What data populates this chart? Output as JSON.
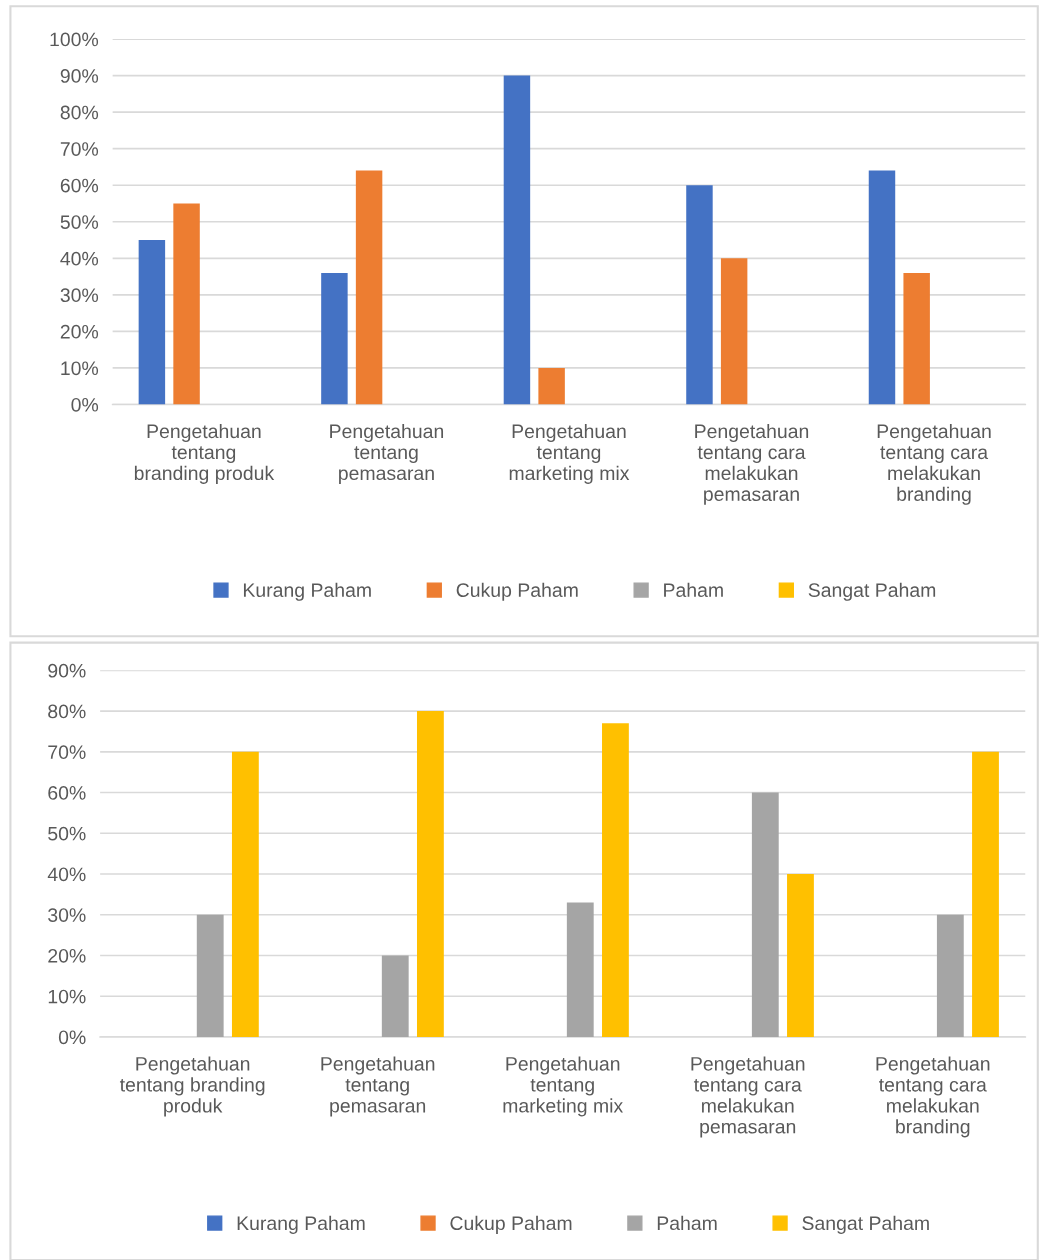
{
  "chart_data": [
    {
      "type": "bar",
      "categories": [
        "Pengetahuan\ntentang\nbranding produk",
        "Pengetahuan\ntentang\npemasaran",
        "Pengetahuan\ntentang\nmarketing mix",
        "Pengetahuan\ntentang cara\nmelakukan\npemasaran",
        "Pengetahuan\ntentang cara\nmelakukan\nbranding"
      ],
      "series": [
        {
          "name": "Kurang Paham",
          "color": "#4472c4",
          "values": [
            45,
            36,
            90,
            60,
            64
          ]
        },
        {
          "name": "Cukup Paham",
          "color": "#ed7d31",
          "values": [
            55,
            64,
            10,
            40,
            36
          ]
        },
        {
          "name": "Paham",
          "color": "#a5a5a5",
          "values": [
            null,
            null,
            null,
            null,
            null
          ]
        },
        {
          "name": "Sangat Paham",
          "color": "#ffc000",
          "values": [
            null,
            null,
            null,
            null,
            null
          ]
        }
      ],
      "ylim": [
        0,
        100
      ],
      "yticks": [
        {
          "value": 0,
          "label": "0%"
        },
        {
          "value": 10,
          "label": "10%"
        },
        {
          "value": 20,
          "label": "20%"
        },
        {
          "value": 30,
          "label": "30%"
        },
        {
          "value": 40,
          "label": "40%"
        },
        {
          "value": 50,
          "label": "50%"
        },
        {
          "value": 60,
          "label": "60%"
        },
        {
          "value": 70,
          "label": "70%"
        },
        {
          "value": 80,
          "label": "80%"
        },
        {
          "value": 90,
          "label": "90%"
        },
        {
          "value": 100,
          "label": "100%"
        }
      ],
      "grid": "y",
      "legend": "bottom"
    },
    {
      "type": "bar",
      "categories": [
        "Pengetahuan\ntentang branding\nproduk",
        "Pengetahuan\ntentang\npemasaran",
        "Pengetahuan\ntentang\nmarketing mix",
        "Pengetahuan\ntentang cara\nmelakukan\npemasaran",
        "Pengetahuan\ntentang cara\nmelakukan\nbranding"
      ],
      "series": [
        {
          "name": "Kurang Paham",
          "color": "#4472c4",
          "values": [
            null,
            null,
            null,
            null,
            null
          ]
        },
        {
          "name": "Cukup Paham",
          "color": "#ed7d31",
          "values": [
            null,
            null,
            null,
            null,
            null
          ]
        },
        {
          "name": "Paham",
          "color": "#a5a5a5",
          "values": [
            30,
            20,
            33,
            60,
            30
          ]
        },
        {
          "name": "Sangat Paham",
          "color": "#ffc000",
          "values": [
            70,
            80,
            77,
            40,
            70
          ]
        }
      ],
      "ylim": [
        0,
        90
      ],
      "yticks": [
        {
          "value": 0,
          "label": "0%"
        },
        {
          "value": 10,
          "label": "10%"
        },
        {
          "value": 20,
          "label": "20%"
        },
        {
          "value": 30,
          "label": "30%"
        },
        {
          "value": 40,
          "label": "40%"
        },
        {
          "value": 50,
          "label": "50%"
        },
        {
          "value": 60,
          "label": "60%"
        },
        {
          "value": 70,
          "label": "70%"
        },
        {
          "value": 80,
          "label": "80%"
        },
        {
          "value": 90,
          "label": "90%"
        }
      ],
      "grid": "y",
      "legend": "bottom"
    }
  ]
}
